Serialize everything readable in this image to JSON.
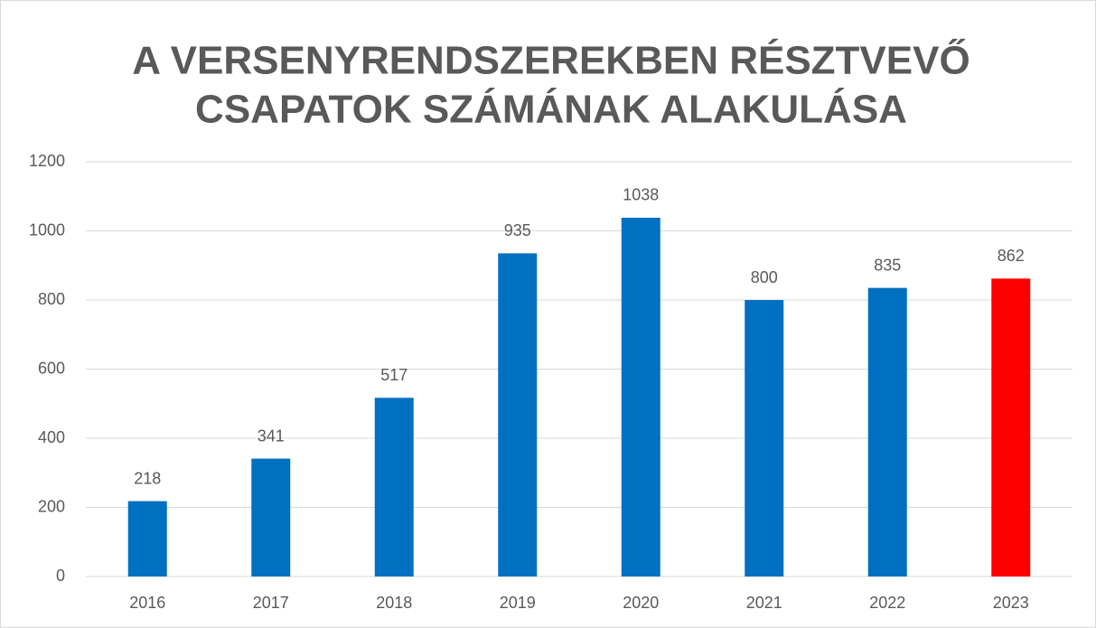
{
  "chart_data": {
    "type": "bar",
    "title": [
      "A VERSENYRENDSZEREKBEN RÉSZTVEVŐ",
      "CSAPATOK SZÁMÁNAK ALAKULÁSA"
    ],
    "categories": [
      "2016",
      "2017",
      "2018",
      "2019",
      "2020",
      "2021",
      "2022",
      "2023"
    ],
    "values": [
      218,
      341,
      517,
      935,
      1038,
      800,
      835,
      862
    ],
    "colors": [
      "#0070c0",
      "#0070c0",
      "#0070c0",
      "#0070c0",
      "#0070c0",
      "#0070c0",
      "#0070c0",
      "#ff0000"
    ],
    "ylim": [
      0,
      1200
    ],
    "yticks": [
      0,
      200,
      400,
      600,
      800,
      1000,
      1200
    ],
    "grid": true
  }
}
